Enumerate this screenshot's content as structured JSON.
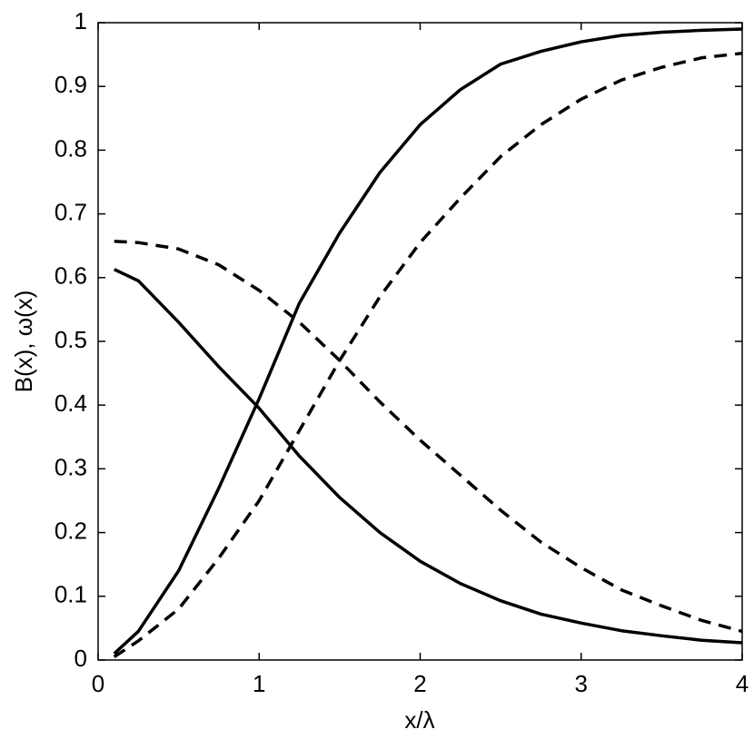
{
  "chart_data": {
    "type": "line",
    "x_label": "x/λ",
    "y_label": "B(x), ω(x)",
    "x": [
      0.1,
      0.25,
      0.5,
      0.75,
      1,
      1.25,
      1.5,
      1.75,
      2,
      2.25,
      2.5,
      2.75,
      3,
      3.25,
      3.5,
      3.75,
      4
    ],
    "series": [
      {
        "color": "#000000",
        "style": "solid",
        "values": [
          0.01,
          0.045,
          0.14,
          0.27,
          0.41,
          0.56,
          0.67,
          0.765,
          0.84,
          0.895,
          0.935,
          0.955,
          0.97,
          0.98,
          0.985,
          0.988,
          0.99
        ]
      },
      {
        "color": "#000000",
        "style": "dashed",
        "values": [
          0.005,
          0.03,
          0.08,
          0.16,
          0.25,
          0.36,
          0.47,
          0.57,
          0.655,
          0.725,
          0.79,
          0.84,
          0.88,
          0.91,
          0.93,
          0.945,
          0.952
        ]
      },
      {
        "color": "#000000",
        "style": "solid",
        "values": [
          0.613,
          0.595,
          0.53,
          0.46,
          0.395,
          0.32,
          0.255,
          0.2,
          0.155,
          0.12,
          0.093,
          0.072,
          0.058,
          0.046,
          0.038,
          0.031,
          0.027
        ]
      },
      {
        "color": "#000000",
        "style": "dashed",
        "values": [
          0.657,
          0.655,
          0.645,
          0.62,
          0.58,
          0.53,
          0.47,
          0.405,
          0.345,
          0.29,
          0.235,
          0.185,
          0.145,
          0.11,
          0.085,
          0.062,
          0.045
        ]
      }
    ],
    "xlim": [
      0,
      4
    ],
    "xticks": [
      0,
      1,
      2,
      3,
      4
    ],
    "ylim": [
      0,
      1
    ],
    "yticks": [
      0,
      0.1,
      0.2,
      0.3,
      0.4,
      0.5,
      0.6,
      0.7,
      0.8,
      0.9,
      1
    ],
    "grid": false
  }
}
